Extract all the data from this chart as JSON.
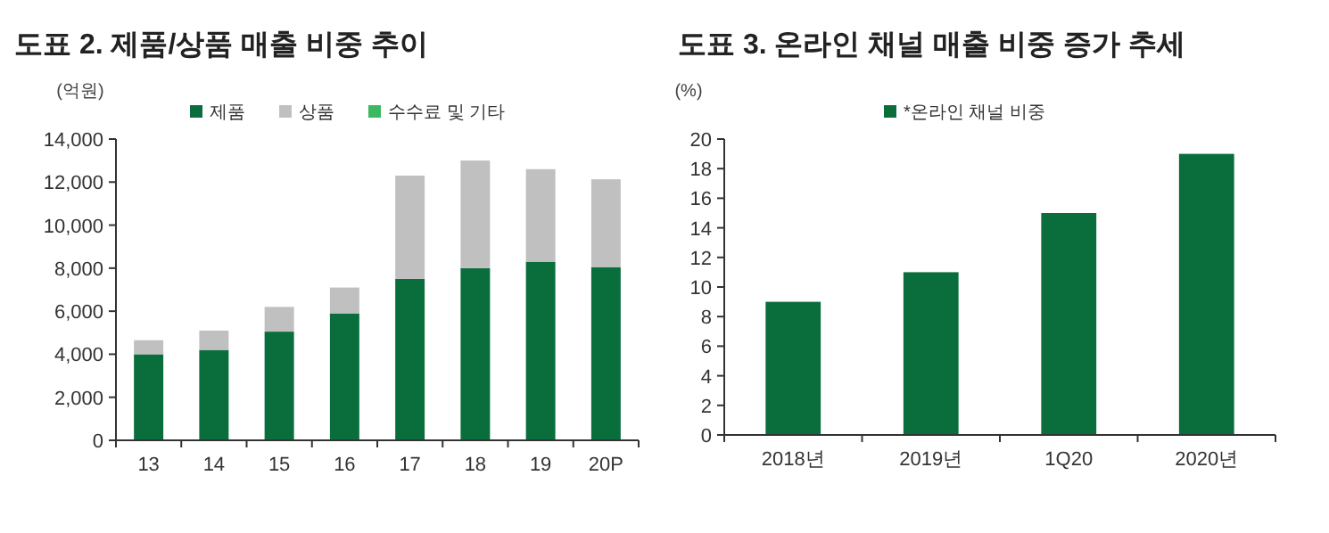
{
  "chart_data": [
    {
      "type": "bar",
      "title": "도표 2. 제품/상품 매출 비중 추이",
      "ylabel": "(억원)",
      "stacked": true,
      "legend": "top",
      "grid": false,
      "categories": [
        "13",
        "14",
        "15",
        "16",
        "17",
        "18",
        "19",
        "20P"
      ],
      "ylim": [
        0,
        14000
      ],
      "yticks": [
        0,
        {
          "value": 2000,
          "label": "2,000"
        },
        {
          "value": 4000,
          "label": "4,000"
        },
        {
          "value": 6000,
          "label": "6,000"
        },
        {
          "value": 8000,
          "label": "8,000"
        },
        {
          "value": 10000,
          "label": "10,000"
        },
        {
          "value": 12000,
          "label": "12,000"
        },
        {
          "value": 14000,
          "label": "14,000"
        }
      ],
      "series": [
        {
          "name": "제품",
          "color": "#0a6e3c",
          "values": [
            4000,
            4200,
            5050,
            5900,
            7500,
            8000,
            8300,
            8050
          ]
        },
        {
          "name": "상품",
          "color": "#c0c0c0",
          "values": [
            650,
            900,
            1150,
            1200,
            4800,
            5000,
            4300,
            4080
          ]
        },
        {
          "name": "수수료 및 기타",
          "color": "#3cb860",
          "values": [
            null,
            null,
            null,
            null,
            null,
            null,
            null,
            null
          ]
        }
      ]
    },
    {
      "type": "bar",
      "title": "도표 3. 온라인 채널 매출 비중 증가 추세",
      "ylabel": "(%)",
      "legend": "top",
      "grid": false,
      "categories": [
        "2018년",
        "2019년",
        "1Q20",
        "2020년"
      ],
      "ylim": [
        0,
        20
      ],
      "yticks": [
        0,
        2,
        4,
        6,
        8,
        10,
        12,
        14,
        16,
        18,
        20
      ],
      "series": [
        {
          "name": "*온라인 채널 비중",
          "color": "#0a6e3c",
          "values": [
            9,
            11,
            15,
            19
          ]
        }
      ]
    }
  ]
}
